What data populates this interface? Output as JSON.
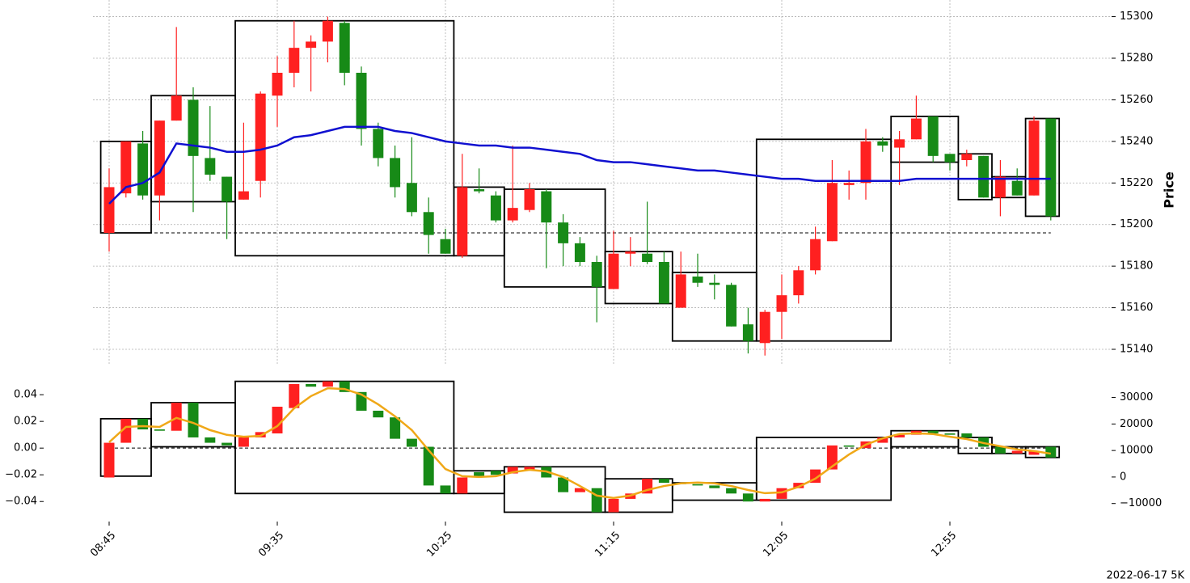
{
  "caption": "2022-06-17 5K",
  "chart_data": [
    {
      "type": "candlestick",
      "ylabel": "Price",
      "categories": [
        "08:45",
        null,
        null,
        null,
        null,
        null,
        null,
        null,
        null,
        null,
        "09:35",
        null,
        null,
        null,
        null,
        null,
        null,
        null,
        null,
        null,
        "10:25",
        null,
        null,
        null,
        null,
        null,
        null,
        null,
        null,
        null,
        "11:15",
        null,
        null,
        null,
        null,
        null,
        null,
        null,
        null,
        null,
        "12:05",
        null,
        null,
        null,
        null,
        null,
        null,
        null,
        null,
        null,
        "12:55",
        null,
        null,
        null,
        null,
        null,
        null
      ],
      "open": [
        15196,
        15215,
        15239,
        15214,
        15250,
        15260,
        15232,
        15223,
        15212,
        15221,
        15262,
        15273,
        15285,
        15288,
        15297,
        15273,
        15246,
        15232,
        15220,
        15206,
        15193,
        15185,
        15217,
        15214,
        15202,
        15207,
        15216,
        15201,
        15191,
        15182,
        15169,
        15186,
        15186,
        15182,
        15160,
        15175,
        15172,
        15171,
        15152,
        15143,
        15158,
        15166,
        15178,
        15192,
        15219,
        15220,
        15240,
        15237,
        15241,
        15252,
        15234,
        15231,
        15233,
        15213,
        15221,
        15214,
        15251
      ],
      "high": [
        15227,
        15240,
        15245,
        15250,
        15295,
        15266,
        15257,
        15223,
        15249,
        15264,
        15281,
        15298,
        15291,
        15300,
        15298,
        15276,
        15249,
        15238,
        15242,
        15213,
        15198,
        15234,
        15227,
        15216,
        15238,
        15220,
        15217,
        15205,
        15194,
        15185,
        15197,
        15194,
        15211,
        15187,
        15187,
        15186,
        15176,
        15172,
        15160,
        15159,
        15176,
        15180,
        15199,
        15231,
        15226,
        15246,
        15242,
        15245,
        15262,
        15252,
        15234,
        15236,
        15233,
        15231,
        15227,
        15252,
        15251
      ],
      "low": [
        15187,
        15213,
        15212,
        15202,
        15250,
        15206,
        15221,
        15193,
        15212,
        15213,
        15247,
        15266,
        15264,
        15278,
        15267,
        15238,
        15228,
        15213,
        15204,
        15186,
        15186,
        15184,
        15215,
        15201,
        15201,
        15206,
        15179,
        15180,
        15180,
        15153,
        15169,
        15180,
        15181,
        15162,
        15160,
        15170,
        15164,
        15151,
        15138,
        15137,
        15145,
        15162,
        15176,
        15192,
        15212,
        15212,
        15235,
        15219,
        15241,
        15230,
        15226,
        15228,
        15213,
        15204,
        15214,
        15214,
        15202
      ],
      "close": [
        15218,
        15240,
        15214,
        15250,
        15262,
        15233,
        15224,
        15211,
        15216,
        15263,
        15273,
        15285,
        15288,
        15298,
        15273,
        15246,
        15232,
        15218,
        15206,
        15195,
        15186,
        15218,
        15216,
        15202,
        15208,
        15217,
        15201,
        15191,
        15182,
        15170,
        15186,
        15187,
        15182,
        15162,
        15176,
        15172,
        15171,
        15151,
        15144,
        15158,
        15166,
        15178,
        15193,
        15220,
        15220,
        15240,
        15238,
        15241,
        15251,
        15233,
        15230,
        15234,
        15213,
        15223,
        15214,
        15250,
        15204
      ],
      "up_color": "#ff2020",
      "down_color": "#178a17",
      "ma": {
        "color": "#1010d0",
        "values": [
          15210,
          15218,
          15220,
          15225,
          15239,
          15238,
          15237,
          15235,
          15235,
          15236,
          15238,
          15242,
          15243,
          15245,
          15247,
          15247,
          15247,
          15245,
          15244,
          15242,
          15240,
          15239,
          15238,
          15238,
          15237,
          15237,
          15236,
          15235,
          15234,
          15231,
          15230,
          15230,
          15229,
          15228,
          15227,
          15226,
          15226,
          15225,
          15224,
          15223,
          15222,
          15222,
          15221,
          15221,
          15221,
          15221,
          15221,
          15221,
          15222,
          15222,
          15222,
          15222,
          15222,
          15222,
          15222,
          15222,
          15222
        ]
      },
      "reference": 15196,
      "boxes": [
        {
          "start": 0,
          "end": 2,
          "high": 15240,
          "low": 15196
        },
        {
          "start": 3,
          "end": 7,
          "high": 15262,
          "low": 15211
        },
        {
          "start": 8,
          "end": 20,
          "high": 15298,
          "low": 15185
        },
        {
          "start": 21,
          "end": 23,
          "high": 15218,
          "low": 15185
        },
        {
          "start": 24,
          "end": 29,
          "high": 15217,
          "low": 15170
        },
        {
          "start": 30,
          "end": 33,
          "high": 15187,
          "low": 15162
        },
        {
          "start": 34,
          "end": 38,
          "high": 15177,
          "low": 15144
        },
        {
          "start": 39,
          "end": 46,
          "high": 15241,
          "low": 15144
        },
        {
          "start": 47,
          "end": 50,
          "high": 15252,
          "low": 15230
        },
        {
          "start": 51,
          "end": 52,
          "high": 15234,
          "low": 15212
        },
        {
          "start": 53,
          "end": 54,
          "high": 15223,
          "low": 15213
        },
        {
          "start": 55,
          "end": 56,
          "high": 15251,
          "low": 15204
        }
      ],
      "ylim": [
        15133,
        15308
      ],
      "yticks": [
        15140,
        15160,
        15180,
        15200,
        15220,
        15240,
        15260,
        15280,
        15300
      ],
      "grid": true
    },
    {
      "type": "candlestick",
      "open": [
        -0.022,
        0.004,
        0.022,
        0.014,
        0.013,
        0.034,
        0.008,
        0.004,
        0.001,
        0.008,
        0.011,
        0.03,
        0.048,
        0.046,
        0.05,
        0.042,
        0.028,
        0.023,
        0.007,
        0.001,
        -0.028,
        -0.034,
        -0.018,
        -0.017,
        -0.019,
        -0.016,
        -0.014,
        -0.022,
        -0.033,
        -0.03,
        -0.048,
        -0.038,
        -0.034,
        -0.023,
        -0.026,
        -0.027,
        -0.028,
        -0.03,
        -0.034,
        -0.04,
        -0.038,
        -0.03,
        -0.026,
        -0.016,
        0.002,
        0.0,
        0.004,
        0.008,
        0.01,
        0.013,
        0.011,
        0.011,
        0.008,
        0.001,
        -0.004,
        -0.005,
        0.001
      ],
      "close": [
        0.004,
        0.022,
        0.014,
        0.013,
        0.034,
        0.008,
        0.004,
        0.002,
        0.008,
        0.012,
        0.031,
        0.048,
        0.046,
        0.05,
        0.042,
        0.028,
        0.023,
        0.007,
        0.001,
        -0.028,
        -0.034,
        -0.022,
        -0.022,
        -0.02,
        -0.014,
        -0.014,
        -0.022,
        -0.033,
        -0.03,
        -0.048,
        -0.038,
        -0.034,
        -0.023,
        -0.026,
        -0.027,
        -0.028,
        -0.03,
        -0.034,
        -0.04,
        -0.038,
        -0.03,
        -0.026,
        -0.016,
        0.002,
        0.001,
        0.005,
        0.008,
        0.01,
        0.013,
        0.011,
        0.01,
        0.008,
        0.001,
        -0.004,
        -0.002,
        -0.002,
        -0.007
      ],
      "up_color": "#ff2020",
      "down_color": "#178a17",
      "line": {
        "color": "#f0a818",
        "axis": "y2",
        "values": [
          13100,
          18900,
          19200,
          18900,
          22300,
          20400,
          17700,
          15900,
          15200,
          15500,
          19200,
          25900,
          30500,
          33500,
          33200,
          31100,
          27400,
          22900,
          17700,
          10100,
          3000,
          300,
          0,
          300,
          1800,
          2700,
          2100,
          0,
          -3400,
          -7000,
          -7900,
          -7000,
          -4900,
          -3400,
          -2400,
          -2100,
          -2400,
          -3400,
          -4900,
          -6100,
          -5800,
          -3700,
          -600,
          4000,
          8500,
          12200,
          14600,
          16200,
          16500,
          16200,
          15200,
          14300,
          12800,
          11600,
          10400,
          9800,
          8800
        ]
      },
      "reference": 0,
      "boxes": [
        {
          "start": 0,
          "end": 2,
          "high": 0.022,
          "low": -0.021
        },
        {
          "start": 3,
          "end": 7,
          "high": 0.034,
          "low": 0.001
        },
        {
          "start": 8,
          "end": 20,
          "high": 0.05,
          "low": -0.034
        },
        {
          "start": 21,
          "end": 23,
          "high": -0.017,
          "low": -0.034
        },
        {
          "start": 24,
          "end": 29,
          "high": -0.014,
          "low": -0.048
        },
        {
          "start": 30,
          "end": 33,
          "high": -0.023,
          "low": -0.048
        },
        {
          "start": 34,
          "end": 38,
          "high": -0.026,
          "low": -0.039
        },
        {
          "start": 39,
          "end": 46,
          "high": 0.008,
          "low": -0.039
        },
        {
          "start": 47,
          "end": 50,
          "high": 0.013,
          "low": 0.001
        },
        {
          "start": 51,
          "end": 52,
          "high": 0.008,
          "low": -0.004
        },
        {
          "start": 53,
          "end": 54,
          "high": 0.001,
          "low": -0.004
        },
        {
          "start": 55,
          "end": 56,
          "high": 0.001,
          "low": -0.007
        }
      ],
      "ylim": [
        -0.055,
        0.054
      ],
      "yticks": [
        {
          "value": -0.04,
          "label": "−0.04"
        },
        {
          "value": -0.02,
          "label": "−0.02"
        },
        {
          "value": 0,
          "label": "0.00"
        },
        0.02,
        0.04
      ],
      "y2lim": [
        -16800,
        38100
      ],
      "y2ticks": [
        {
          "value": -10000,
          "label": "−10000"
        },
        0,
        10000,
        20000,
        30000
      ]
    }
  ]
}
